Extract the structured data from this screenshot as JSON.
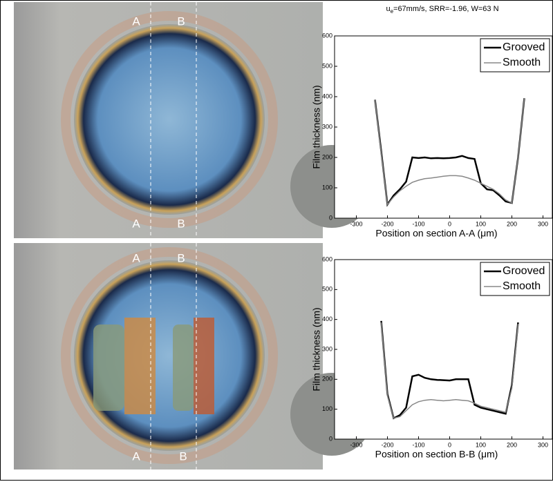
{
  "chart_data": [
    {
      "type": "line",
      "title": {
        "symbol": "u",
        "subscript": "e",
        "text": "=67mm/s, SRR=-1.96, W=63 N"
      },
      "x_label": "Position on section A-A (μm)",
      "y_label": "Film thickness (nm)",
      "x": [
        -240,
        -220,
        -200,
        -180,
        -160,
        -140,
        -120,
        -100,
        -80,
        -60,
        -40,
        -20,
        0,
        20,
        40,
        60,
        80,
        100,
        120,
        140,
        160,
        180,
        200,
        220,
        240
      ],
      "series": [
        {
          "name": "Grooved",
          "color": "#000000",
          "values": [
            390,
            220,
            45,
            75,
            95,
            120,
            200,
            198,
            200,
            197,
            198,
            197,
            198,
            200,
            205,
            198,
            195,
            115,
            95,
            92,
            75,
            55,
            50,
            200,
            395
          ]
        },
        {
          "name": "Smooth",
          "color": "#888888",
          "values": [
            390,
            215,
            45,
            70,
            90,
            105,
            118,
            125,
            130,
            132,
            135,
            138,
            140,
            140,
            138,
            132,
            125,
            115,
            105,
            95,
            80,
            60,
            50,
            200,
            395
          ]
        }
      ],
      "xlim": [
        -370,
        330
      ],
      "ylim": [
        0,
        600
      ],
      "xticks": [
        -300,
        -200,
        -100,
        0,
        100,
        200,
        300
      ],
      "yticks": [
        0,
        100,
        200,
        300,
        400,
        500,
        600
      ],
      "legend": "upper right"
    },
    {
      "type": "line",
      "x_label": "Position on section B-B (μm)",
      "y_label": "Film thickness (nm)",
      "x": [
        -220,
        -200,
        -180,
        -160,
        -140,
        -120,
        -100,
        -80,
        -60,
        -40,
        -20,
        0,
        20,
        40,
        60,
        80,
        100,
        120,
        140,
        160,
        180,
        200,
        220
      ],
      "series": [
        {
          "name": "Grooved",
          "color": "#000000",
          "values": [
            395,
            150,
            70,
            80,
            105,
            210,
            215,
            205,
            200,
            198,
            197,
            196,
            200,
            200,
            200,
            115,
            105,
            100,
            95,
            90,
            85,
            180,
            390
          ]
        },
        {
          "name": "Smooth",
          "color": "#888888",
          "values": [
            390,
            145,
            70,
            75,
            95,
            115,
            125,
            130,
            132,
            130,
            128,
            130,
            132,
            130,
            128,
            120,
            110,
            105,
            100,
            95,
            90,
            170,
            385
          ]
        }
      ],
      "xlim": [
        -370,
        330
      ],
      "ylim": [
        0,
        600
      ],
      "xticks": [
        -300,
        -200,
        -100,
        0,
        100,
        200,
        300
      ],
      "yticks": [
        0,
        100,
        200,
        300,
        400,
        500,
        600
      ],
      "legend": "upper right"
    }
  ],
  "images": [
    {
      "top_labels": [
        "A",
        "B"
      ],
      "bottom_labels": [
        "A",
        "B"
      ]
    },
    {
      "top_labels": [
        "A",
        "B"
      ],
      "bottom_labels": [
        "A",
        "B"
      ]
    }
  ]
}
